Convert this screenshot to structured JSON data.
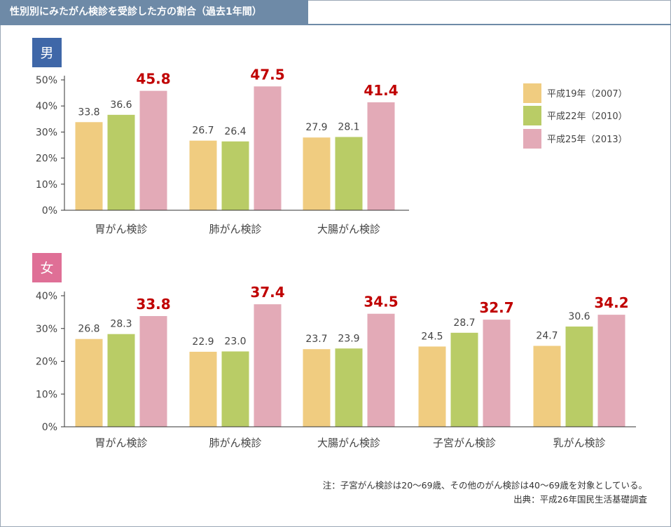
{
  "header": {
    "title": "性別別にみたがん検診を受診した方の割合（過去1年間）"
  },
  "legend": {
    "items": [
      {
        "label": "平成19年（2007）",
        "color": "#f0cc80"
      },
      {
        "label": "平成22年（2010）",
        "color": "#b9cc66"
      },
      {
        "label": "平成25年（2013）",
        "color": "#e3aab7"
      }
    ]
  },
  "chart_data": [
    {
      "type": "bar",
      "title": "男",
      "title_color": "#3f67a8",
      "categories": [
        "胃がん検診",
        "肺がん検診",
        "大腸がん検診"
      ],
      "series": [
        {
          "name": "平成19年（2007）",
          "values": [
            33.8,
            26.7,
            27.9
          ],
          "labels": [
            "33.8",
            "26.7",
            "27.9"
          ],
          "color": "#f0cc80"
        },
        {
          "name": "平成22年（2010）",
          "values": [
            36.6,
            26.4,
            28.1
          ],
          "labels": [
            "36.6",
            "26.4",
            "28.1"
          ],
          "color": "#b9cc66"
        },
        {
          "name": "平成25年（2013）",
          "values": [
            45.8,
            47.5,
            41.4
          ],
          "labels": [
            "45.8",
            "47.5",
            "41.4"
          ],
          "color": "#e3aab7"
        }
      ],
      "ylim": [
        0,
        50
      ],
      "yticks": [
        "0%",
        "10%",
        "20%",
        "30%",
        "40%",
        "50%"
      ],
      "grid": false,
      "legend": "right"
    },
    {
      "type": "bar",
      "title": "女",
      "title_color": "#df6f96",
      "categories": [
        "胃がん検診",
        "肺がん検診",
        "大腸がん検診",
        "子宮がん検診",
        "乳がん検診"
      ],
      "series": [
        {
          "name": "平成19年（2007）",
          "values": [
            26.8,
            22.9,
            23.7,
            24.5,
            24.7
          ],
          "labels": [
            "26.8",
            "22.9",
            "23.7",
            "24.5",
            "24.7"
          ],
          "color": "#f0cc80"
        },
        {
          "name": "平成22年（2010）",
          "values": [
            28.3,
            23.0,
            23.9,
            28.7,
            30.6
          ],
          "labels": [
            "28.3",
            "23.0",
            "23.9",
            "28.7",
            "30.6"
          ],
          "color": "#b9cc66"
        },
        {
          "name": "平成25年（2013）",
          "values": [
            33.8,
            37.4,
            34.5,
            32.7,
            34.2
          ],
          "labels": [
            "33.8",
            "37.4",
            "34.5",
            "32.7",
            "34.2"
          ],
          "color": "#e3aab7"
        }
      ],
      "ylim": [
        0,
        40
      ],
      "yticks": [
        "0%",
        "10%",
        "20%",
        "30%",
        "40%"
      ],
      "grid": false,
      "legend": "none"
    }
  ],
  "notes": {
    "note": "注：子宮がん検診は20〜69歳、その他のがん検診は40〜69歳を対象としている。",
    "source": "出典：平成26年国民生活基礎調査"
  },
  "colors": {
    "highlight_label": "#c00000",
    "normal_label": "#444444",
    "axis": "#333333"
  }
}
